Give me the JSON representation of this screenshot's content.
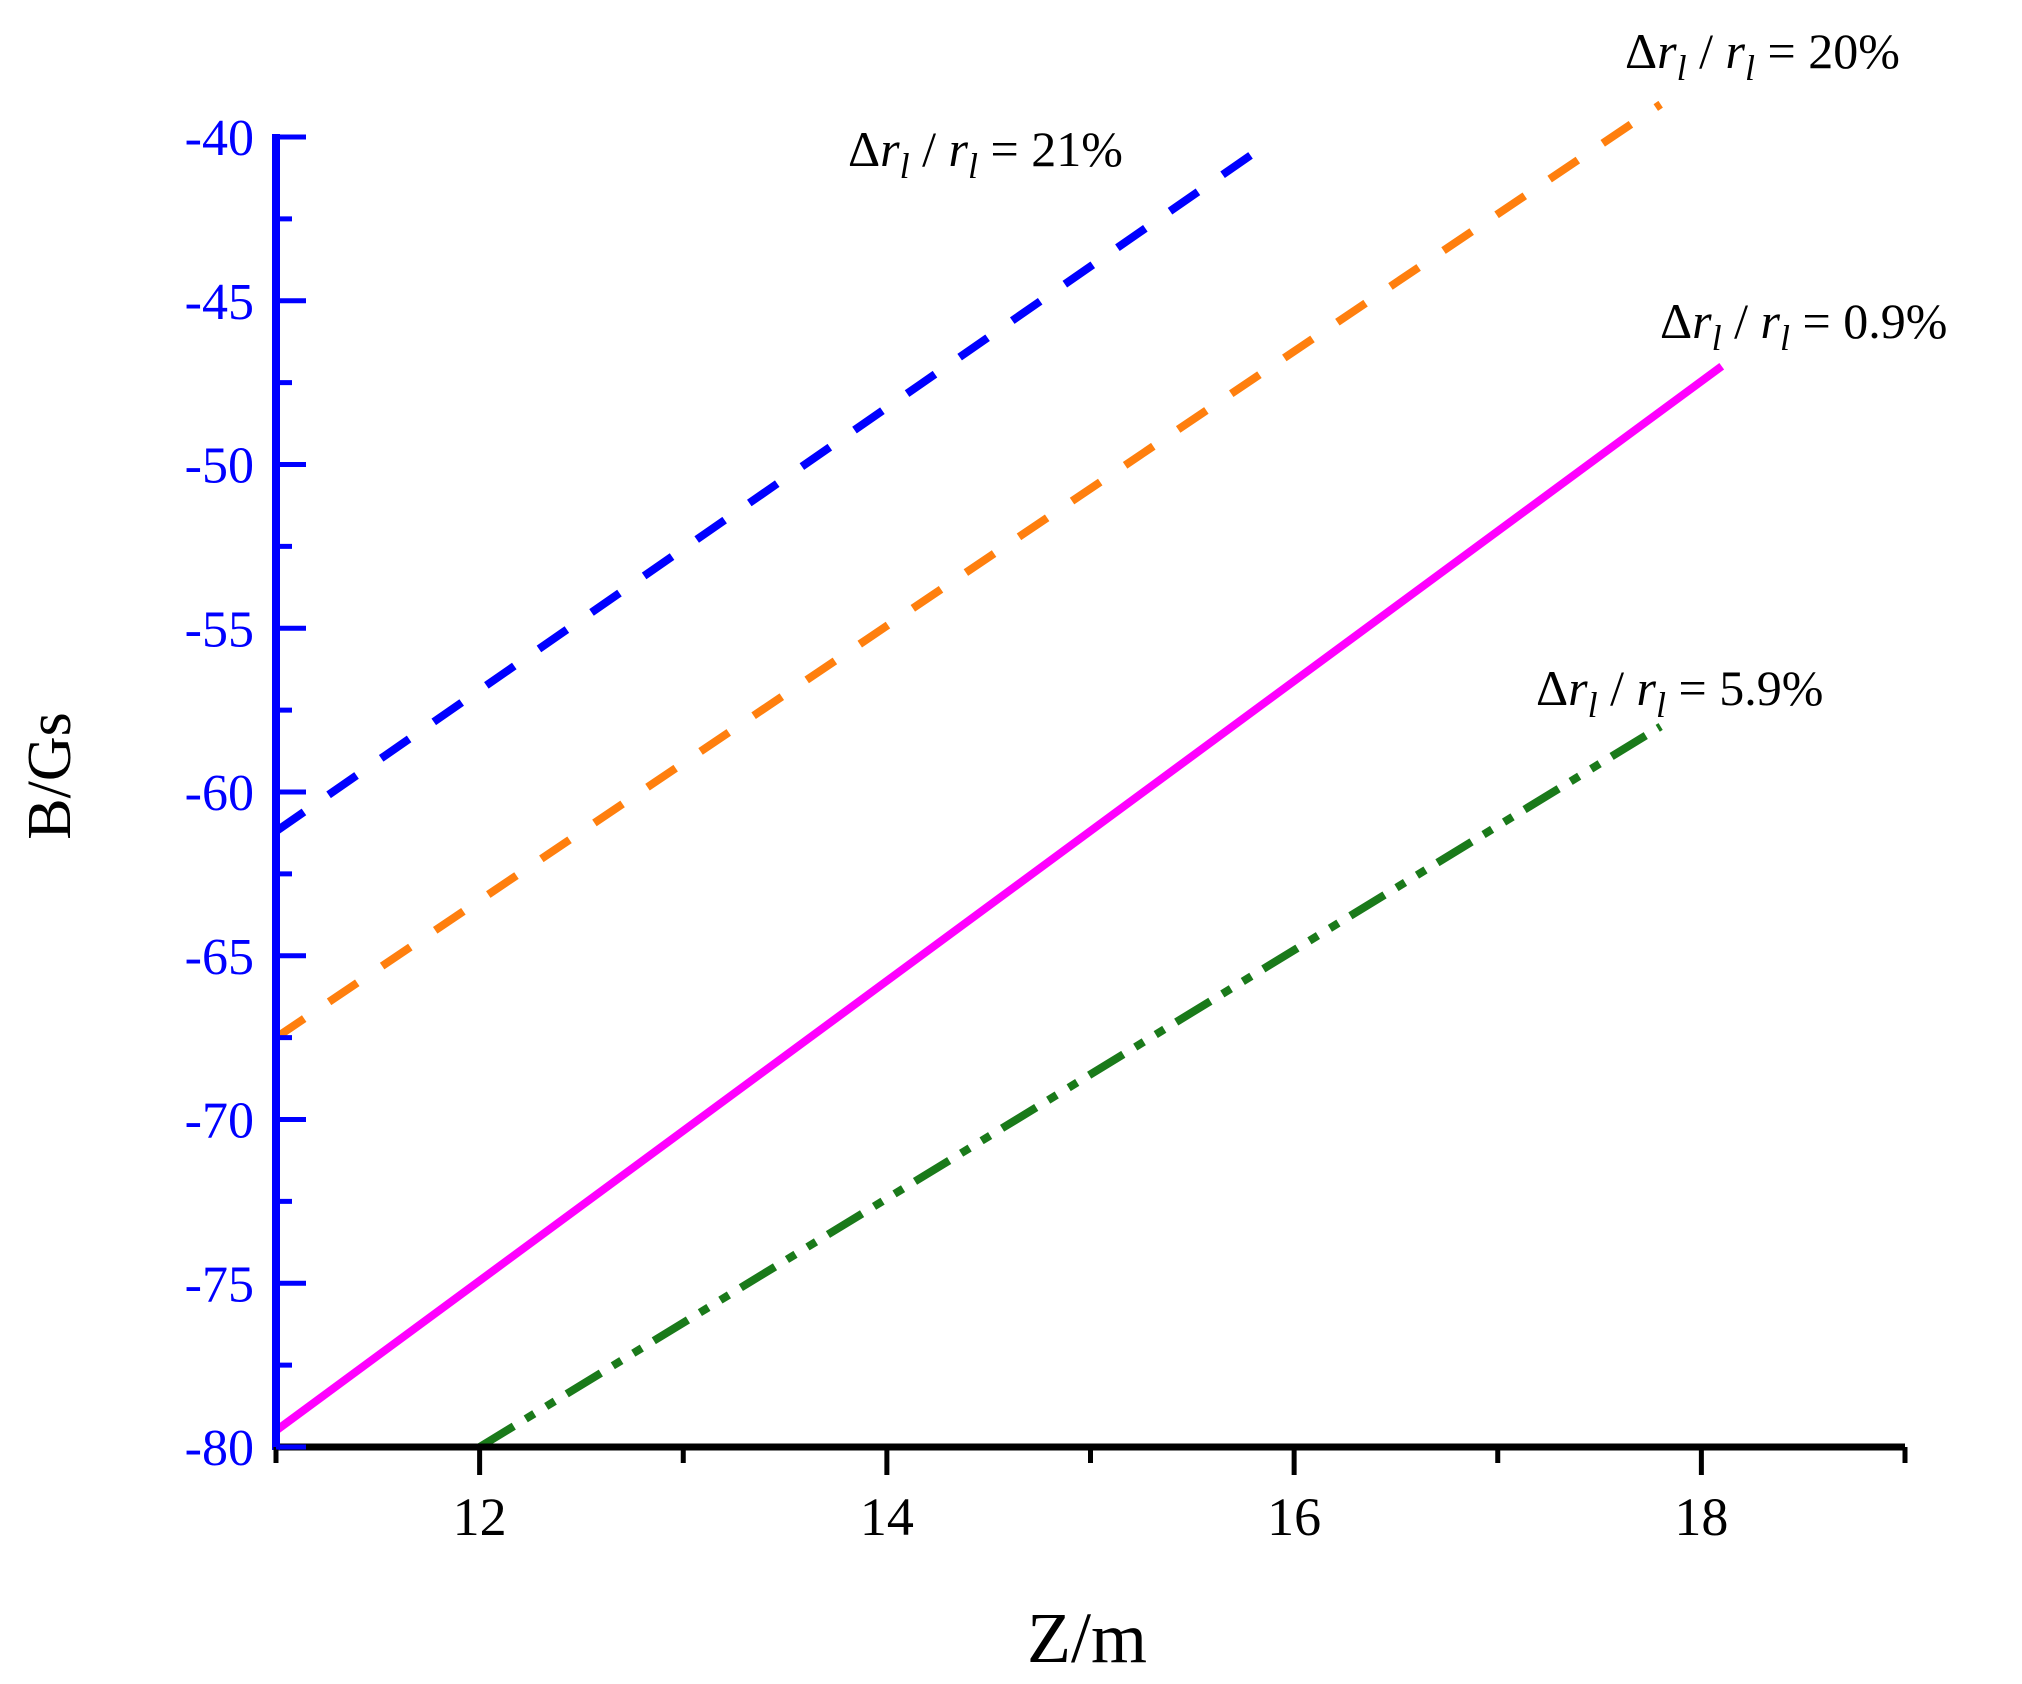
{
  "chart_data": {
    "type": "line",
    "title": "",
    "xlabel": "Z/m",
    "ylabel": "B/Gs",
    "xlim": [
      11,
      19
    ],
    "ylim": [
      -80,
      -40
    ],
    "x_ticks": [
      12,
      14,
      16,
      18
    ],
    "x_minor_step": 0.5,
    "y_ticks": [
      -80,
      -75,
      -70,
      -65,
      -60,
      -55,
      -50,
      -45,
      -40
    ],
    "y_minor_step": 2.5,
    "grid": false,
    "legend": "none",
    "colors": {
      "y_axis": "#0000ff",
      "x_axis": "#000000"
    },
    "series": [
      {
        "color": "#0000ff",
        "dash": "dashed",
        "x": [
          11,
          15.8
        ],
        "y": [
          -61.2,
          -40.5
        ]
      },
      {
        "color": "#ff7f0e",
        "dash": "dashed",
        "x": [
          11,
          17.8
        ],
        "y": [
          -67.5,
          -39.0
        ]
      },
      {
        "color": "#ff00ff",
        "dash": "solid",
        "x": [
          11,
          18.1
        ],
        "y": [
          -79.5,
          -47.0
        ]
      },
      {
        "color": "#1a7a1a",
        "dash": "dash-dot-dot",
        "x": [
          12,
          17.8
        ],
        "y": [
          -80.0,
          -58.0
        ]
      }
    ],
    "annotations": [
      {
        "pre": "Δ",
        "r1": "r",
        "sub1": "l",
        "mid": " / ",
        "r2": "r",
        "sub2": "l",
        "post": " = 21%",
        "series": 0
      },
      {
        "pre": "Δ",
        "r1": "r",
        "sub1": "l",
        "mid": " / ",
        "r2": "r",
        "sub2": "l",
        "post": " = 20%",
        "series": 1
      },
      {
        "pre": "Δ",
        "r1": "r",
        "sub1": "l",
        "mid": " / ",
        "r2": "r",
        "sub2": "l",
        "post": " = 0.9%",
        "series": 2
      },
      {
        "pre": "Δ",
        "r1": "r",
        "sub1": "l",
        "mid": " / ",
        "r2": "r",
        "sub2": "l",
        "post": " = 5.9%",
        "series": 3
      }
    ]
  }
}
